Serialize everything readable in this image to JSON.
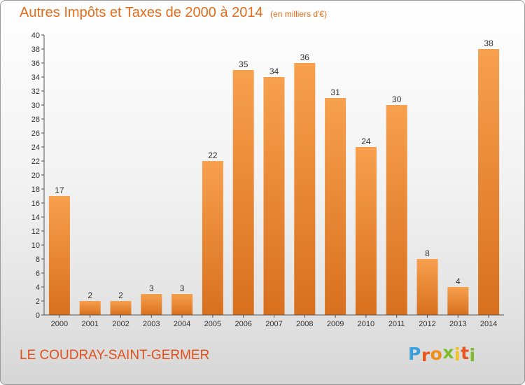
{
  "header": {
    "title": "Autres Impôts et Taxes de 2000 à 2014",
    "subtitle": "(en milliers d'€)"
  },
  "footer": {
    "commune": "LE COUDRAY-SAINT-GERMER",
    "logo": {
      "text": "Proxiti",
      "letter_colors": [
        "#3a9fdb",
        "#e8561d",
        "#ef8e1b",
        "#7dbb2b",
        "#f2c21a",
        "#e8561d",
        "#7dbb2b"
      ]
    }
  },
  "chart_data": {
    "type": "bar",
    "title": "Autres Impôts et Taxes de 2000 à 2014",
    "subtitle": "(en milliers d'€)",
    "categories": [
      "2000",
      "2001",
      "2002",
      "2003",
      "2004",
      "2005",
      "2006",
      "2007",
      "2008",
      "2009",
      "2010",
      "2011",
      "2012",
      "2013",
      "2014"
    ],
    "values": [
      17,
      2,
      2,
      3,
      3,
      22,
      35,
      34,
      36,
      31,
      24,
      30,
      8,
      4,
      38
    ],
    "ylim": [
      0,
      40
    ],
    "ytick_step": 2,
    "grid": false,
    "data_labels": true,
    "colors": {
      "bar_light": "#f7a04e",
      "bar_dark": "#d8701e",
      "axis": "#555555",
      "text": "#333333"
    }
  }
}
